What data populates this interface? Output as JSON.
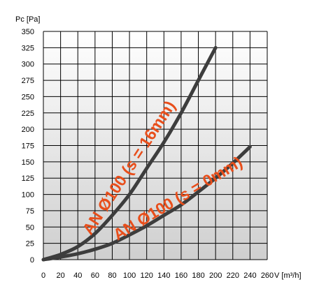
{
  "chart_data": {
    "type": "line",
    "ylabel": "Pc [Pa]",
    "xlabel": "V [m³/h]",
    "xlim": [
      0,
      260
    ],
    "ylim": [
      0,
      350
    ],
    "x_ticks": [
      0,
      20,
      40,
      60,
      80,
      100,
      120,
      140,
      160,
      180,
      200,
      220,
      240,
      260
    ],
    "y_ticks": [
      0,
      25,
      50,
      75,
      100,
      125,
      150,
      175,
      200,
      225,
      250,
      275,
      300,
      325,
      350
    ],
    "grid": true,
    "legend": "none",
    "colors": {
      "plot_bg_top": "#ffffff",
      "plot_bg_bottom": "#cfcfcf",
      "grid": "#000000",
      "series_line": "#3d3d3d",
      "annotation": "#e84e1b"
    },
    "series": [
      {
        "annotation": "AN Ø100 (s = 16mm)",
        "x": [
          0,
          20,
          40,
          60,
          80,
          100,
          120,
          140,
          160,
          180,
          200
        ],
        "y": [
          0,
          8,
          20,
          40,
          68,
          100,
          140,
          180,
          225,
          275,
          325
        ]
      },
      {
        "annotation": "AN Ø100 (s = 0mm)",
        "x": [
          0,
          20,
          40,
          60,
          80,
          100,
          120,
          140,
          160,
          180,
          200,
          220,
          240
        ],
        "y": [
          0,
          4,
          9,
          16,
          25,
          38,
          52,
          68,
          84,
          104,
          125,
          148,
          173
        ]
      }
    ]
  }
}
